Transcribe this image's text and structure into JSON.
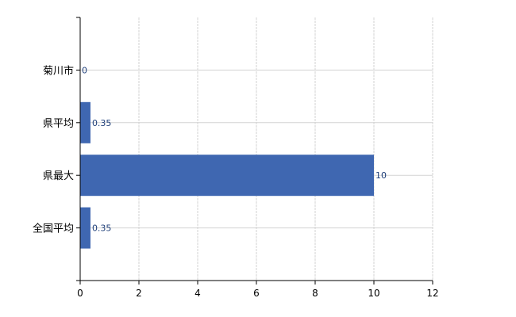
{
  "chart_data": {
    "type": "bar",
    "orientation": "horizontal",
    "categories": [
      "菊川市",
      "県平均",
      "県最大",
      "全国平均"
    ],
    "values": [
      0,
      0.35,
      10,
      0.35
    ],
    "data_labels": [
      "0",
      "0.35",
      "10",
      "0.35"
    ],
    "title": "",
    "xlabel": "",
    "ylabel": "",
    "xlim": [
      0,
      12
    ],
    "xticks": [
      0,
      2,
      4,
      6,
      8,
      10,
      12
    ],
    "grid": true,
    "legend": "none",
    "colors": {
      "bar": "#3f67b1",
      "grid": "#d3d3d3",
      "axis": "#000000"
    }
  }
}
